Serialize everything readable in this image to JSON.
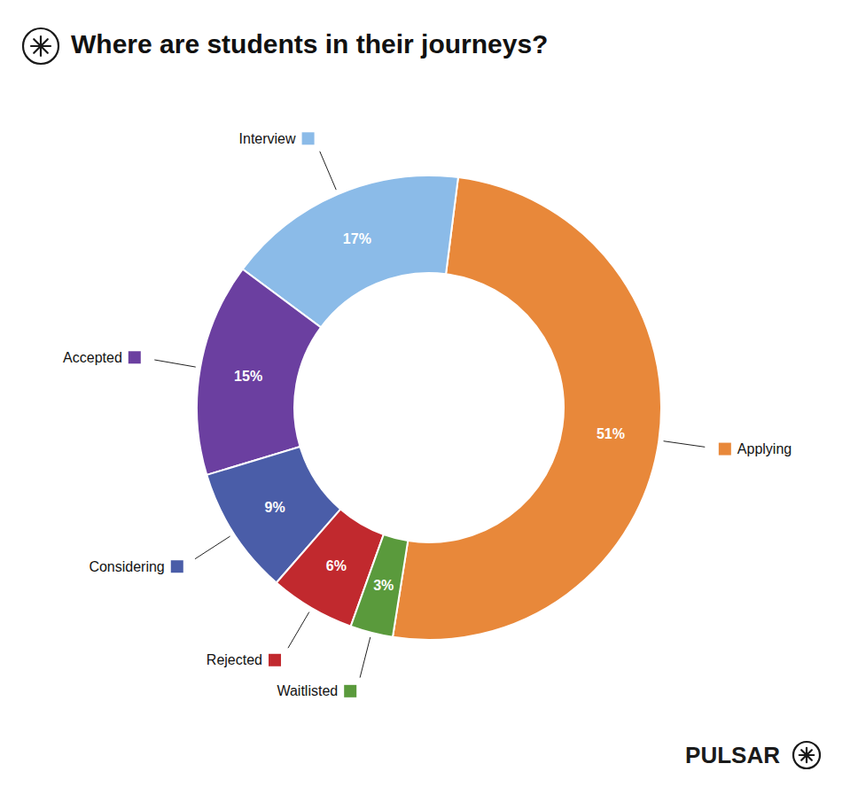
{
  "chart_data": {
    "type": "donut",
    "title": "Where are students in their journeys?",
    "categories": [
      "Applying",
      "Interview",
      "Accepted",
      "Considering",
      "Rejected",
      "Waitlisted"
    ],
    "values": [
      51,
      17,
      15,
      9,
      6,
      3
    ],
    "value_labels": [
      "51%",
      "17%",
      "15%",
      "9%",
      "6%",
      "3%"
    ],
    "colors": [
      "#E8883A",
      "#8BBBE8",
      "#6B3FA0",
      "#4A5DA8",
      "#C1292E",
      "#5A9A3C"
    ],
    "data_labels": true,
    "annotations": [
      "PULSAR"
    ]
  }
}
